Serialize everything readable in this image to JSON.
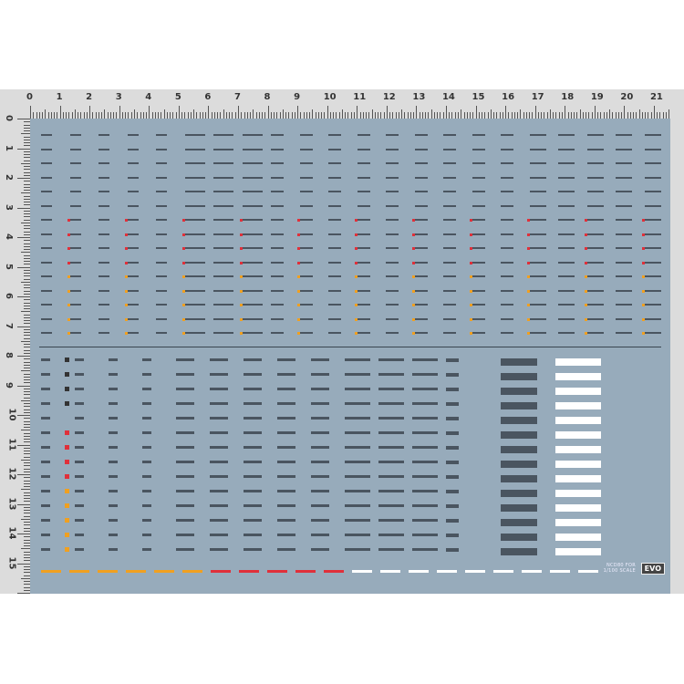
{
  "ruler": {
    "top_labels": [
      "0",
      "1",
      "2",
      "3",
      "4",
      "5",
      "6",
      "7",
      "8",
      "9",
      "10",
      "11",
      "12",
      "13",
      "14",
      "15",
      "16",
      "17",
      "18",
      "19",
      "20",
      "21"
    ],
    "left_labels": [
      "0",
      "1",
      "2",
      "3",
      "4",
      "5",
      "6",
      "7",
      "8",
      "9",
      "10",
      "11",
      "12",
      "13",
      "14",
      "15"
    ]
  },
  "sheet": {
    "background": "#97abbb",
    "accent_red": "#e0303a",
    "accent_orange": "#f0a020",
    "mark_color": "#4a5560"
  },
  "brand": {
    "line1": "NCD80 FOR",
    "line2": "1/100 SCALE",
    "logo": "EVO"
  }
}
